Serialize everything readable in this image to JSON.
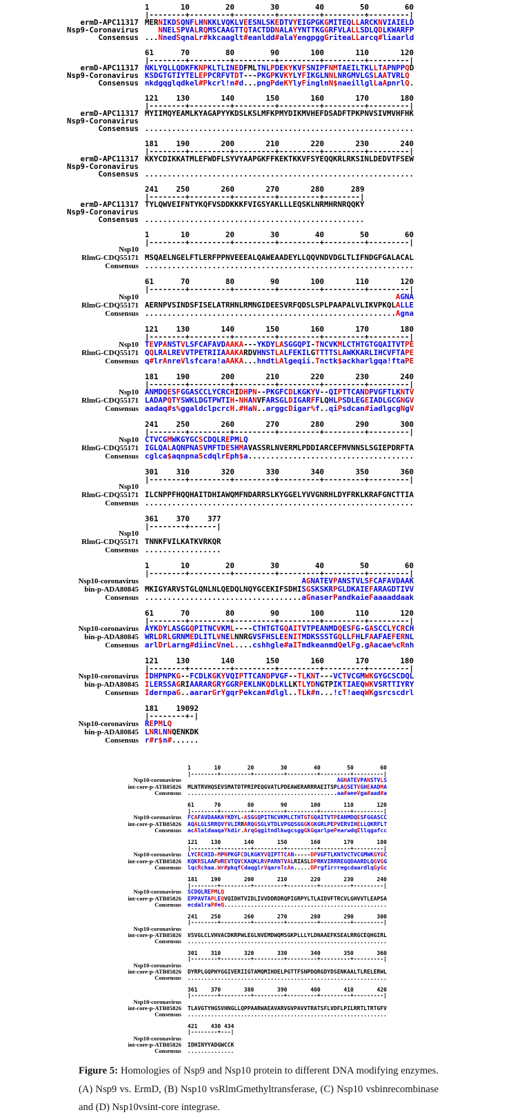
{
  "colors": {
    "identity": "#e80000",
    "similar": "#0000e8",
    "mismatch": "#000000"
  },
  "caption": {
    "label": "Figure 5:",
    "text": " Homologies of Nsp9 and Nsp10 protein to different DNA modifying enzymes. (A) Nsp9 vs. ErmD, (B) Nsp10 vsRlmGmethyltransferase, (C) Nsp10 vsbinrecombinase and (D) Nsp10vsint-core integrase."
  },
  "alignments": [
    {
      "panel": "A",
      "size": "normal",
      "label_style": "mono",
      "labels": [
        "ermD-APC11317",
        "Nsp9-Coronavirus",
        "Consensus"
      ],
      "rows": [
        {
          "numbers": "1       10        20        30        40        50        60",
          "ruler": "|--------+---------+---------+---------+---------+---------|",
          "seq1": "MERNIKDSQNFLHNKKLVQKLVEESNLSKEDTVYEIGPGKGMITEQLLARCKNVIAIELD",
          "seq2": {
            "pad": 3,
            "text": "NNELSPVALRQMSCAAGTTQTACTDDNALAYYNTTKGGRFVLALLSDLQDLKWARFP"
          },
          "consensus": {
            "dots": 3,
            "text": "NnedSqnaLr#kkcaaglt#eanldd#alaYengpggGriteaLLarcq#liaarld"
          }
        },
        {
          "numbers": "61      70        80        90       100       110       120",
          "ruler": "|--------+---------+---------+---------+---------+---------|",
          "seq1": "NKLYQLLQDKFKNPKLTLINEDFMLTNLPDEKYKVFSNIPFNMTAEILTKLLTAPNPPQD",
          "seq2": "KSDGTGTIYTELEPPCRFVTDT---PKGPKVKYLYFIKGLNNLNRGMVLGSLAATVRLQ",
          "consensus": "nkdgqglqdkel#Pkcrl!n#d...pngPdeKYlyFinglnN$naeillglLaApnrlQ."
        },
        {
          "numbers": "121    130       140       150       160       170       180",
          "ruler": "|--------+---------+---------+---------+---------+---------|",
          "seq1": "MYIIMQYEAMLKYAGAPYYKDSLKSLMFKPMYDIKMVHEFDSADFTPKPNVSIVMVHFHK",
          "seq2": "",
          "consensus": {
            "dots": 60,
            "text": ""
          }
        },
        {
          "numbers": "181    190       200       210       220       230       240",
          "ruler": "|--------+---------+---------+---------+---------+---------|",
          "seq1": "KKYCDIKKATMLEFWDFLSYVYAAPGKFFKEKTKKVFSYEQQKRLRKSINLDEDVTFSEW",
          "seq2": "",
          "consensus": {
            "dots": 60,
            "text": ""
          }
        },
        {
          "numbers": "241    250       260       270       280      289",
          "ruler": "|--------+---------+---------+---------+--------|",
          "seq1": "TYLQWVEIFNTYKQFVSDDKKKFVIGSYAKLLLEQSKLNRMHRNRQQKY",
          "seq2": "",
          "consensus": {
            "dots": 49,
            "text": ""
          }
        }
      ]
    },
    {
      "panel": "B",
      "size": "normal",
      "label_style": "serif",
      "labels": [
        "Nsp10",
        "RlmG-CDQ55171",
        "Consensus"
      ],
      "rows": [
        {
          "numbers": "1       10        20        30        40        50        60",
          "ruler": "|--------+---------+---------+---------+---------+---------|",
          "seq1": "",
          "seq2": "MSQAELNGELFTLERFPPNVEEEALQAWEAADEYLLQQVNDVDGLTLIFNDGFGALACAL",
          "consensus": {
            "dots": 60,
            "text": ""
          }
        },
        {
          "numbers": "61      70        80        90       100       110       120",
          "ruler": "|--------+---------+---------+---------+---------+---------|",
          "seq1": {
            "pad": 56,
            "text": "AGNA"
          },
          "seq2": "AERNPVSINDSFISELATRHNLRMNGIDEESVRFQDSLSPLPAAPALVLIKVPKQLALLE",
          "consensus": {
            "dots": 56,
            "text": "Agna"
          }
        },
        {
          "numbers": "121    130       140       150       160       170       180",
          "ruler": "|--------+---------+---------+---------+---------+---------|",
          "seq1": "TEVPANSTVLSFCAFAVDAAKA---YKDYLASGGQPI-TNCVKMLCTHTGTGQAITVTPE",
          "seq2": "QQLRALREVVTPETRIIAAAKARDVHNSTLALFEKILGTTTTSLAWKKARLIHCVFTAPE",
          "consensus": "q#lrAnreVlsfcara!aAAKA...hndtLAlgeqii.Tnctk$ackharlgqa!ftaPE"
        },
        {
          "numbers": "181    190       200       210       220       230       240",
          "ruler": "|--------+---------+---------+---------+---------+---------|",
          "seq1": "ANMDQESFGGASCCLYCRCHIDHPN--PKGFCDLKGKYV--QIPTTCANDPVGFTLKNTV",
          "seq2": "LADAPQTYSWKLDGTPWTIH-NHANVFARSGLDIGARFFLQHLPSDLEGEIADLGCGNGV",
          "consensus": "aadaq#s%ggaldclpcrcH.#HaN..arggcDigar%f..qiPsdcan#iadlgcgNgV"
        },
        {
          "numbers": "241    250       260       270       280       290       300",
          "ruler": "|--------+---------+---------+---------+---------+---------|",
          "seq1": "CTVCGMWKGYGCSCDQLREPMLQ",
          "seq2": "IGLQALAQNPNASVMFTDESHMAVASSRLNVERMLPDDIARCEFMVNNSLSGIEPDRFTA",
          "consensus": {
            "text": "cglca$aqnpnaScdqlrEph$a",
            "dotsAfter": 37
          }
        },
        {
          "numbers": "301    310       320       330       340       350       360",
          "ruler": "|--------+---------+---------+---------+---------+---------|",
          "seq1": "",
          "seq2": "ILCNPPFHQQHAITDHIAWQMFNDARRSLKYGGELYVVGNRHLDYFRKLKRAFGNCTTIA",
          "consensus": {
            "dots": 60,
            "text": ""
          }
        },
        {
          "numbers": "361    370    377",
          "ruler": "|--------+------|",
          "seq1": "",
          "seq2": "TNNKFVILKATKVRKQR",
          "consensus": {
            "dots": 17,
            "text": ""
          }
        }
      ]
    },
    {
      "panel": "C",
      "size": "normal",
      "label_style": "serif",
      "labels": [
        "Nsp10-coronavirus",
        "bin-p-ADA80845",
        "Consensus"
      ],
      "rows": [
        {
          "numbers": "1       10        20        30        40        50        60",
          "ruler": "|--------+---------+---------+---------+---------+---------|",
          "seq1": {
            "pad": 35,
            "text": "AGNATEVPANSTVLSFCAFAVDAAK"
          },
          "seq2": "MKIGYARVSTGLQNLNLQEDQLNQYGCEKIFSDHISGSKSKRPGLDKAIEFARAGDTIVV",
          "consensus": {
            "dots": 35,
            "text": "aGnaserPandkaieFaaaaddaak"
          }
        },
        {
          "numbers": "61      70        80        90       100       110       120",
          "ruler": "|--------+---------+---------+---------+---------+---------|",
          "seq1": "AYKDYLASGGQPITNCVKML----CTHTGTGQAITVTPEANMDQESFG-GASCCLYCRCH",
          "seq2": "WRLDRLGRNMEDLITLVNELNNRGVSFHSLEENITMDKSSSTGQLLFHLFAAFAEFERNL",
          "consensus": "arlDrLarng#diincVneL....cshhgle#aITmdkeanmdQelFg.gAacae%cRnh"
        },
        {
          "numbers": "121    130       140       150       160       170       180",
          "ruler": "|--------+---------+---------+---------+---------+---------|",
          "seq1": "IDHPNPKG--FCDLKGKYVQIPTTCANDPVGF--TLKNT---VCTVCGMWKGYGCSCDQL",
          "seq2": "ILERSSAGRIAARARGRYGGRPEKLNKQDLKLLKTLYDNGTPIKTIAEQWKVSRTTIYRY",
          "consensus": "IdernpaG..aararGrYgqrPekcan#dlgl..TLk#n...!cT!aeqWKgsrcscdrl"
        },
        {
          "numbers": "181    19092",
          "ruler": "|--------+-|",
          "seq1": "REPMLQ",
          "seq2": "LNRLNNQENKDK",
          "consensus": "r#r$n#......"
        }
      ]
    },
    {
      "panel": "D",
      "size": "small",
      "label_style": "serif",
      "labels": [
        "Nsp10-coronavirus",
        "int-core-p-ATB85826",
        "Consensus"
      ],
      "rows": [
        {
          "numbers": "1       10        20        30        40        50        60",
          "ruler": "|--------+---------+---------+---------+---------+---------|",
          "seq1": {
            "pad": 45,
            "text": "AGNATEVPANSTVLS"
          },
          "seq2": "MLNTRVHQSEVSMATDTPRIPEQGVATLPDEAWERARRRAEITSPLAQSETVGHEAADMA",
          "consensus": {
            "dots": 45,
            "text": "aa#aeeVga#aad#a"
          }
        },
        {
          "numbers": "61      70        80        90       100       110       120",
          "ruler": "|--------+---------+---------+---------+---------+---------|",
          "seq1": "FCAFAVDAAKAYKDYL-ASGGQPITNCVKMLCTHTGTGQAITVTPEANMDQESFGGASCC",
          "seq2": "AQALGLSRRQVYVLIRRARQGSGLVTDLVPGQSGGGKGKGRLPEPVERVIHELLQKRFLT",
          "consensus": "acAlaldaaqaYkdir.ArqGqgitndlkwgcsggGkGqarlpePearwdqEllqgafcc"
        },
        {
          "numbers": "121    130       140       150       160       170       180",
          "ruler": "|--------+---------+---------+---------+---------+---------|",
          "seq1": "LYCRCHID-MPNPKGFCDLKGKYVQIPTTCAN-----DPVGFTLKNTVCTVCGMWKGYGC",
          "seq2": "KQKRSLAAFWREVTQVCKAQKLRVPARNTVALRIASLDPRKVIRRREGQDAARDLQGVGG",
          "consensus": "lqcRchaa.Wr#pkqfCdaqglrVqarnTcAn.....DPrgfirrregcdaardlqGyGc"
        },
        {
          "numbers": "181    190       200       210       220       230       240",
          "ruler": "|--------+---------+---------+---------+---------+---------|",
          "seq1": "SCDQLREPMLQ",
          "seq2": "EPPAVTAPLEQVQIDHTVIDLIVVDDRDRQPIGRPYLTLAIDVFTRCVLGHVVTLEAPSA",
          "consensus": {
            "text": "ecdalraP#eQ",
            "dotsAfter": 49
          }
        },
        {
          "numbers": "241    250       260       270       280       290       300",
          "ruler": "|--------+---------+---------+---------+---------+---------|",
          "seq1": "",
          "seq2": "VSVGLCLVHVACDKRPWLEGLNVEMDWQMSGKPLLLYLDNAAEFKSEALRRGCEQHGIRL",
          "consensus": {
            "dots": 60,
            "text": ""
          }
        },
        {
          "numbers": "301    310       320       330       340       350       360",
          "ruler": "|--------+---------+---------+---------+---------+---------|",
          "seq1": "",
          "seq2": "DYRPLGQPHYGGIVERIIGTAMQMIHDELPGTTFSNPDQRGDYDSENKAALTLRELERWL",
          "consensus": {
            "dots": 60,
            "text": ""
          }
        },
        {
          "numbers": "361    370       380       390       400       410       420",
          "ruler": "|--------+---------+---------+---------+---------+---------|",
          "seq1": "",
          "seq2": "TLAVGTYHGSVHNGLLQPPAARWAEAVARVGVPAVVTRATSFLVDFLPILRRTLTRTGFV",
          "consensus": {
            "dots": 60,
            "text": ""
          }
        },
        {
          "numbers": "421    430 434",
          "ruler": "|--------+---|",
          "seq1": "",
          "seq2": "IDHINYYADGWCCK",
          "consensus": {
            "dots": 14,
            "text": ""
          }
        }
      ]
    }
  ]
}
